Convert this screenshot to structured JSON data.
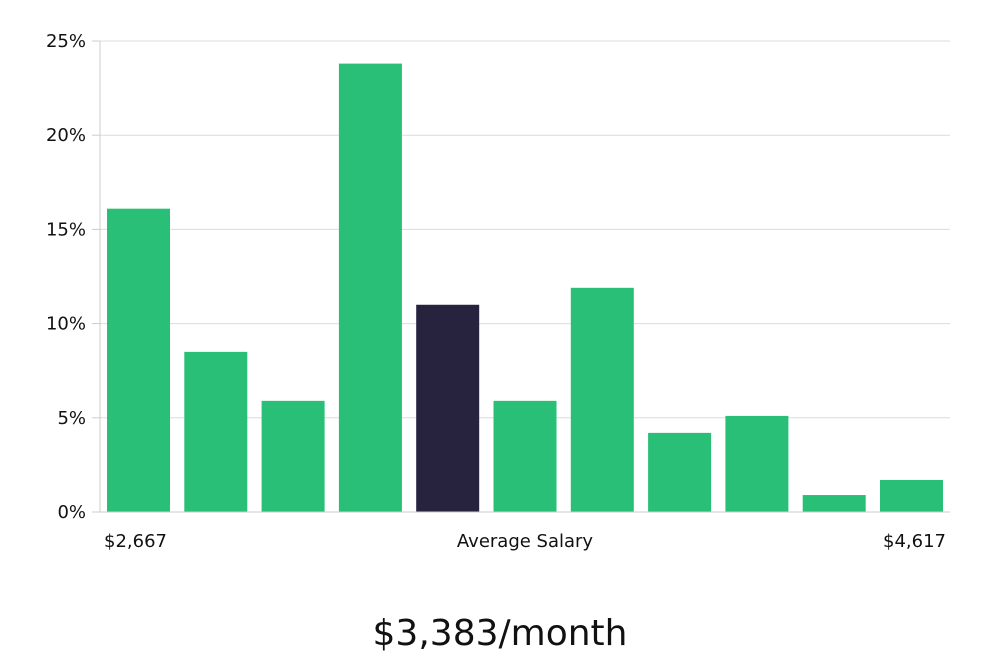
{
  "colors": {
    "bar": "#2abf77",
    "highlight": "#27233f",
    "grid": "#dcdcdc",
    "axis": "#cccccc",
    "text": "#111111"
  },
  "chart_data": {
    "type": "bar",
    "title": "",
    "xlabel": "Average Salary",
    "ylabel": "",
    "x_min_label": "$2,667",
    "x_max_label": "$4,617",
    "ylim": [
      0,
      25
    ],
    "yticks": [
      0,
      5,
      10,
      15,
      20,
      25
    ],
    "ytick_labels": [
      "0%",
      "5%",
      "10%",
      "15%",
      "20%",
      "25%"
    ],
    "values": [
      16.1,
      8.5,
      5.9,
      23.8,
      11.0,
      5.9,
      11.9,
      4.2,
      5.1,
      0.9,
      1.7
    ],
    "highlight_index": 4,
    "grid": true,
    "legend": "none"
  },
  "summary": {
    "average_salary": "$3,383/month"
  }
}
